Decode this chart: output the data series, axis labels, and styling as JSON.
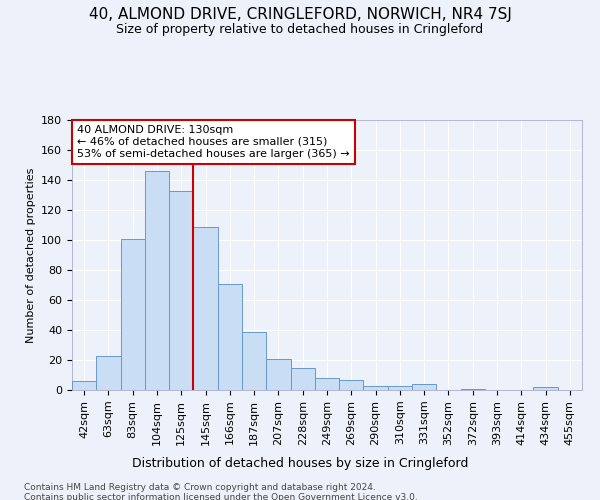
{
  "title1": "40, ALMOND DRIVE, CRINGLEFORD, NORWICH, NR4 7SJ",
  "title2": "Size of property relative to detached houses in Cringleford",
  "xlabel": "Distribution of detached houses by size in Cringleford",
  "ylabel": "Number of detached properties",
  "categories": [
    "42sqm",
    "63sqm",
    "83sqm",
    "104sqm",
    "125sqm",
    "145sqm",
    "166sqm",
    "187sqm",
    "207sqm",
    "228sqm",
    "249sqm",
    "269sqm",
    "290sqm",
    "310sqm",
    "331sqm",
    "352sqm",
    "372sqm",
    "393sqm",
    "414sqm",
    "434sqm",
    "455sqm"
  ],
  "values": [
    6,
    23,
    101,
    146,
    133,
    109,
    71,
    39,
    21,
    15,
    8,
    7,
    3,
    3,
    4,
    0,
    1,
    0,
    0,
    2,
    0
  ],
  "bar_color": "#c9ddf5",
  "bar_edge_color": "#6699cc",
  "vline_color": "#cc0000",
  "vline_x_index": 5,
  "annotation_text": "40 ALMOND DRIVE: 130sqm\n← 46% of detached houses are smaller (315)\n53% of semi-detached houses are larger (365) →",
  "annotation_box_color": "white",
  "annotation_box_edgecolor": "#cc0000",
  "ylim": [
    0,
    180
  ],
  "yticks": [
    0,
    20,
    40,
    60,
    80,
    100,
    120,
    140,
    160,
    180
  ],
  "footer1": "Contains HM Land Registry data © Crown copyright and database right 2024.",
  "footer2": "Contains public sector information licensed under the Open Government Licence v3.0.",
  "background_color": "#edf2fa",
  "plot_bg_color": "#edf2fa",
  "grid_color": "white",
  "title1_fontsize": 11,
  "title2_fontsize": 9,
  "ylabel_fontsize": 8,
  "xlabel_fontsize": 9,
  "tick_fontsize": 8,
  "annotation_fontsize": 8,
  "footer_fontsize": 6.5
}
